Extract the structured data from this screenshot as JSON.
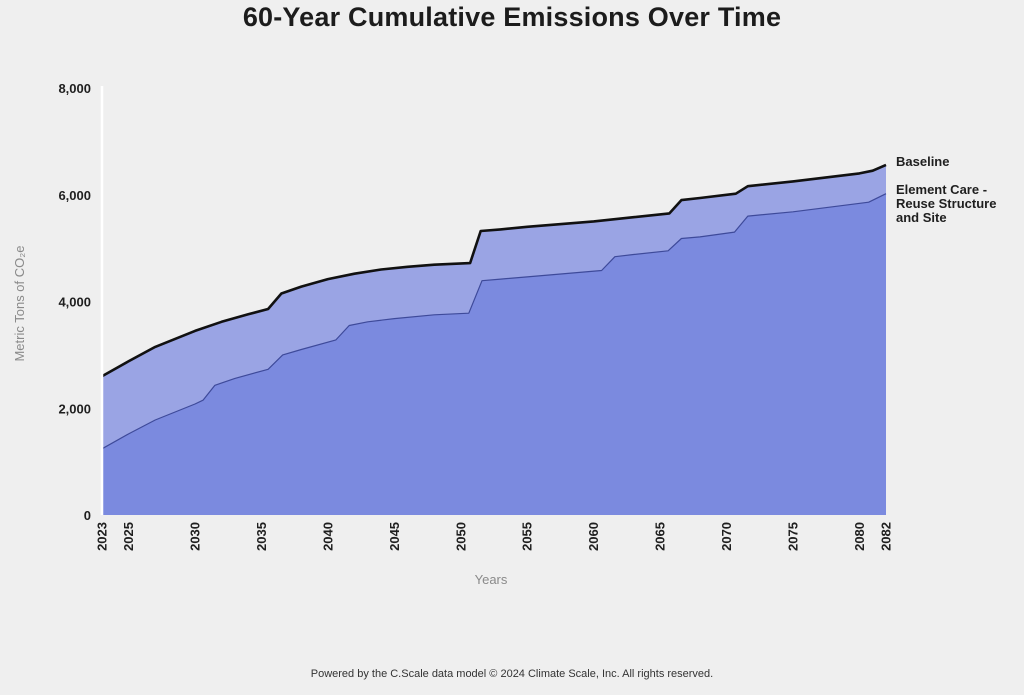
{
  "chart_data": {
    "type": "area",
    "title": "60-Year Cumulative Emissions Over Time",
    "xlabel": "Years",
    "ylabel": "Metric Tons of CO₂e",
    "xlim": [
      2023,
      2082
    ],
    "ylim": [
      0,
      8000
    ],
    "x_ticks": [
      2023,
      2025,
      2030,
      2035,
      2040,
      2045,
      2050,
      2055,
      2060,
      2065,
      2070,
      2075,
      2080,
      2082
    ],
    "y_ticks": [
      0,
      2000,
      4000,
      6000,
      8000
    ],
    "y_tick_labels": [
      "0",
      "2,000",
      "4,000",
      "6,000",
      "8,000"
    ],
    "grid": false,
    "legend": "inline labels at right end of series",
    "series": [
      {
        "name": "Baseline",
        "color": "#9aa4e4",
        "line_color": "#111111",
        "x": [
          2023,
          2025,
          2027,
          2030,
          2032,
          2034,
          2035.5,
          2036.5,
          2038,
          2040,
          2042,
          2044,
          2046,
          2048,
          2050.7,
          2051.5,
          2053,
          2055,
          2060,
          2063,
          2065.7,
          2066.6,
          2068,
          2070.7,
          2071.6,
          2075,
          2080,
          2081,
          2082
        ],
        "values": [
          2600,
          2880,
          3150,
          3450,
          3620,
          3760,
          3860,
          4150,
          4280,
          4420,
          4520,
          4600,
          4650,
          4690,
          4720,
          5320,
          5350,
          5400,
          5500,
          5580,
          5650,
          5900,
          5940,
          6020,
          6160,
          6250,
          6400,
          6450,
          6560
        ]
      },
      {
        "name": "Element Care - Reuse Structure and Site",
        "color": "#7b8adf",
        "line_color": "#3e4a9a",
        "x": [
          2023,
          2025,
          2027,
          2030,
          2030.6,
          2031.5,
          2033,
          2035.5,
          2036.6,
          2038,
          2040.6,
          2041.6,
          2043,
          2045,
          2048,
          2050.6,
          2051.6,
          2053,
          2055,
          2060.6,
          2061.6,
          2063,
          2065.6,
          2066.6,
          2068,
          2070.6,
          2071.6,
          2075,
          2080.7,
          2082
        ],
        "values": [
          1240,
          1520,
          1780,
          2080,
          2150,
          2430,
          2560,
          2730,
          3000,
          3100,
          3280,
          3550,
          3620,
          3680,
          3750,
          3780,
          4390,
          4420,
          4460,
          4580,
          4840,
          4880,
          4950,
          5180,
          5210,
          5300,
          5600,
          5680,
          5860,
          6020
        ]
      }
    ]
  },
  "series_labels": [
    {
      "lines": [
        "Baseline"
      ]
    },
    {
      "lines": [
        "Element Care -",
        "Reuse Structure",
        "and Site"
      ]
    }
  ],
  "footer": "Powered by the C.Scale data model © 2024 Climate Scale, Inc. All rights reserved."
}
